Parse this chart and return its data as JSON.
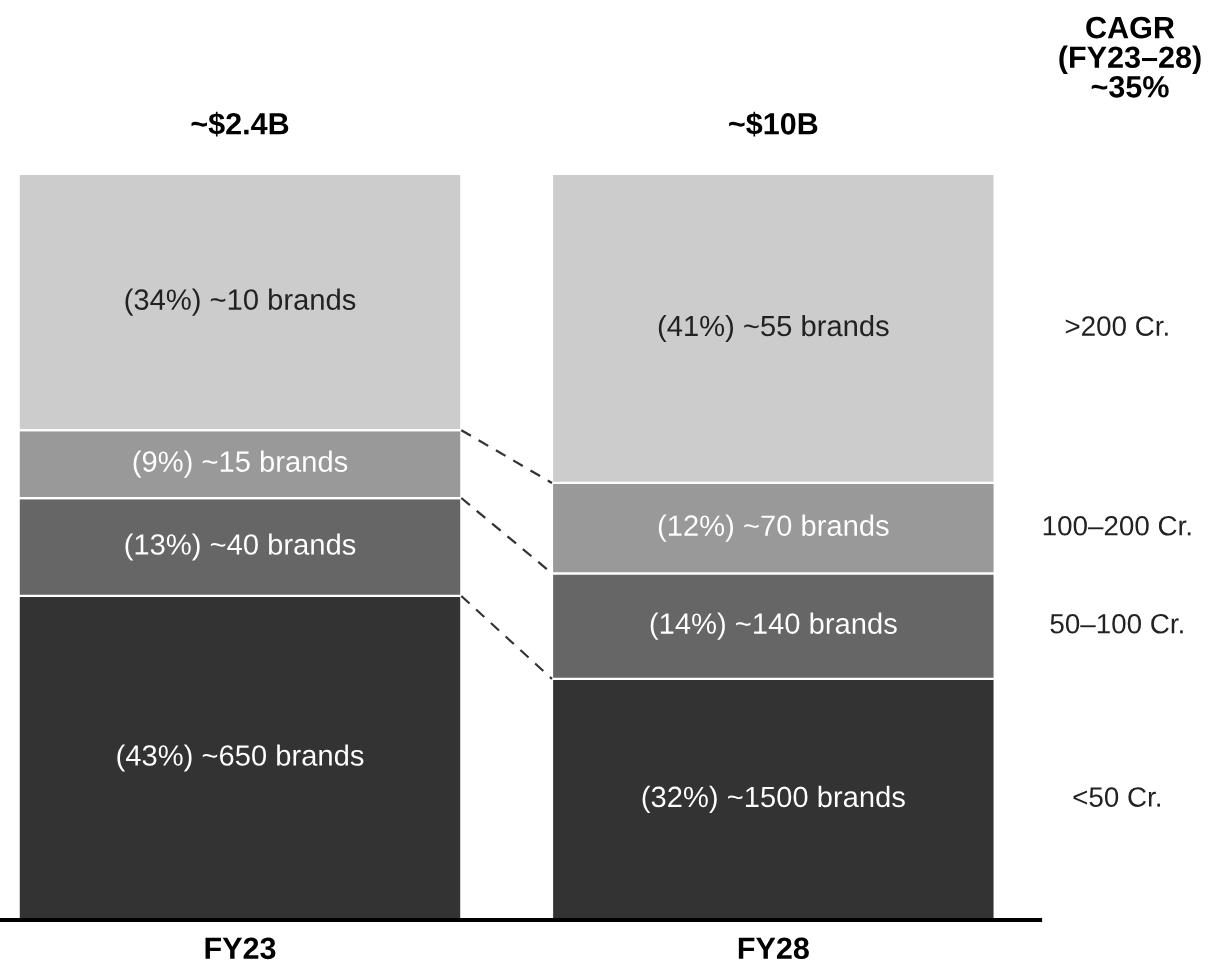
{
  "chart_data": {
    "type": "bar",
    "stacked": true,
    "categories": [
      "FY23",
      "FY28"
    ],
    "series": [
      {
        "name": "<50 Cr.",
        "color": "#333333",
        "values": [
          43,
          32
        ],
        "value_labels": [
          "(43%) ~650 brands",
          "(32%) ~1500 brands"
        ]
      },
      {
        "name": "50–100 Cr.",
        "color": "#666666",
        "values": [
          13,
          14
        ],
        "value_labels": [
          "(13%) ~40 brands",
          "(14%) ~140 brands"
        ]
      },
      {
        "name": "100–200 Cr.",
        "color": "#999999",
        "values": [
          9,
          12
        ],
        "value_labels": [
          "(9%) ~15 brands",
          "(12%) ~70 brands"
        ]
      },
      {
        "name": ">200 Cr.",
        "color": "#cccccc",
        "values": [
          34,
          41
        ],
        "value_labels": [
          "(34%) ~10 brands",
          "(41%) ~55 brands"
        ]
      }
    ],
    "annotations": [
      {
        "text": "~$2.4B",
        "x": "FY23",
        "y": 99
      },
      {
        "text": "~$10B",
        "x": "FY28",
        "y": 99
      },
      "CAGR\n(FY23–28)\n~35%"
    ]
  }
}
